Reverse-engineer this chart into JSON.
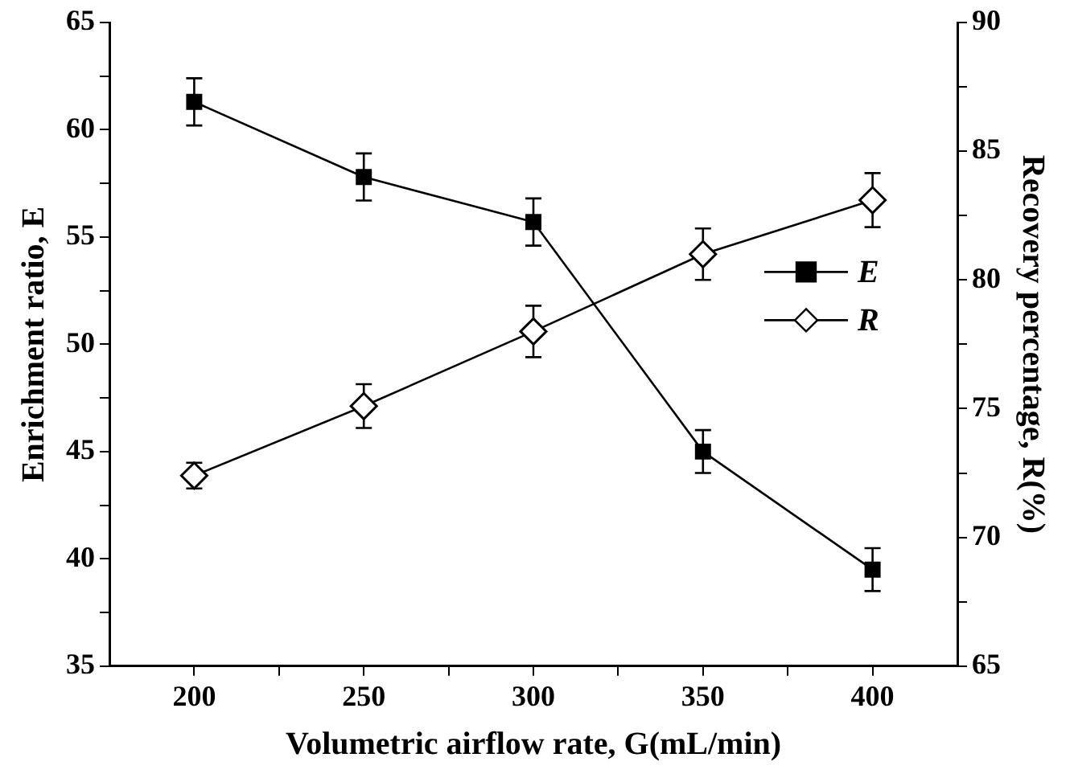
{
  "chart_data": {
    "type": "line",
    "xlabel": "Volumetric airflow rate, G(mL/min)",
    "ylabel": "Enrichment ratio, E",
    "y2label": "Recovery percentage, R(%)",
    "x": [
      200,
      250,
      300,
      350,
      400
    ],
    "xlim": [
      175,
      425
    ],
    "xticks": [
      200,
      {
        "value": 225,
        "label": null
      },
      250,
      {
        "value": 275,
        "label": null
      },
      300,
      {
        "value": 325,
        "label": null
      },
      350,
      {
        "value": 375,
        "label": null
      },
      400
    ],
    "ylim": [
      35,
      65
    ],
    "yticks": [
      35,
      {
        "value": 37.5,
        "label": null
      },
      40,
      {
        "value": 42.5,
        "label": null
      },
      45,
      {
        "value": 47.5,
        "label": null
      },
      50,
      {
        "value": 52.5,
        "label": null
      },
      55,
      {
        "value": 57.5,
        "label": null
      },
      60,
      {
        "value": 62.5,
        "label": null
      },
      65
    ],
    "y2lim": [
      65,
      90
    ],
    "y2ticks": [
      65,
      {
        "value": 67.5,
        "label": null
      },
      70,
      {
        "value": 72.5,
        "label": null
      },
      75,
      {
        "value": 77.5,
        "label": null
      },
      80,
      {
        "value": 82.5,
        "label": null
      },
      85,
      {
        "value": 87.5,
        "label": null
      },
      90
    ],
    "series": [
      {
        "name": "E",
        "color": "#000000",
        "marker": "square",
        "values": [
          61.3,
          57.8,
          55.7,
          45.0,
          39.5
        ],
        "errors": [
          1.1,
          1.1,
          1.1,
          1.0,
          1.0
        ]
      },
      {
        "name": "R",
        "color": "#000000",
        "marker": "diamond",
        "axis": "y2",
        "values": [
          72.4,
          75.1,
          78.0,
          81.0,
          83.1
        ],
        "errors": [
          0.5,
          0.85,
          1.0,
          1.0,
          1.05
        ]
      }
    ],
    "grid": false,
    "legend": "right"
  }
}
